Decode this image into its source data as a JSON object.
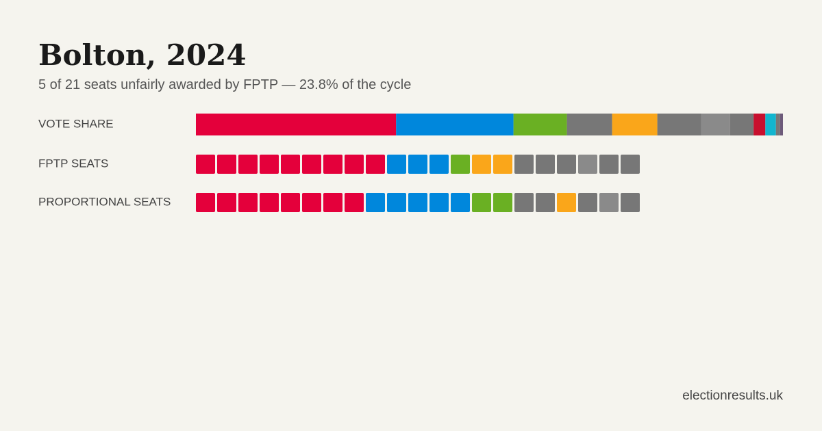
{
  "chart_data": {
    "type": "seat-comparison",
    "title": "Bolton, 2024",
    "subtitle": "5 of 21 seats unfairly awarded by FPTP — 23.8% of the cycle",
    "footer": "electionresults.uk",
    "vote_share": {
      "label": "VOTE SHARE",
      "segments": [
        {
          "color": "#e4003b",
          "value": 34.1
        },
        {
          "color": "#0087dc",
          "value": 20.0
        },
        {
          "color": "#6ab023",
          "value": 9.1
        },
        {
          "color": "#777777",
          "value": 7.7
        },
        {
          "color": "#faa61a",
          "value": 7.7
        },
        {
          "color": "#777777",
          "value": 7.5
        },
        {
          "color": "#8a8a8a",
          "value": 4.9
        },
        {
          "color": "#777777",
          "value": 4.0
        },
        {
          "color": "#c8102e",
          "value": 2.0
        },
        {
          "color": "#12b6cf",
          "value": 1.8
        },
        {
          "color": "#777777",
          "value": 0.7
        },
        {
          "color": "#6d5a7a",
          "value": 0.5
        }
      ]
    },
    "seat_rows": [
      {
        "label": "FPTP SEATS",
        "segments": [
          {
            "color": "#e4003b",
            "seats": 9
          },
          {
            "color": "#0087dc",
            "seats": 3
          },
          {
            "color": "#6ab023",
            "seats": 1
          },
          {
            "color": "#faa61a",
            "seats": 2
          },
          {
            "color": "#777777",
            "seats": 3
          },
          {
            "color": "#8a8a8a",
            "seats": 1
          },
          {
            "color": "#777777",
            "seats": 2
          }
        ]
      },
      {
        "label": "PROPORTIONAL SEATS",
        "segments": [
          {
            "color": "#e4003b",
            "seats": 8
          },
          {
            "color": "#0087dc",
            "seats": 5
          },
          {
            "color": "#6ab023",
            "seats": 2
          },
          {
            "color": "#777777",
            "seats": 2
          },
          {
            "color": "#faa61a",
            "seats": 1
          },
          {
            "color": "#777777",
            "seats": 1
          },
          {
            "color": "#8a8a8a",
            "seats": 1
          },
          {
            "color": "#777777",
            "seats": 1
          }
        ]
      }
    ]
  }
}
